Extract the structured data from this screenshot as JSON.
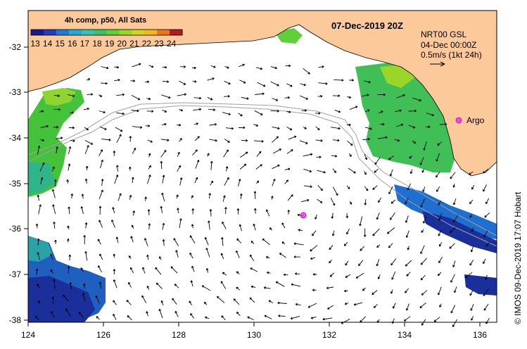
{
  "title": "07-Dec-2019 20Z",
  "colorbar": {
    "title": "4h comp, p50, All Sats",
    "ticks": [
      "13",
      "14",
      "15",
      "16",
      "17",
      "18",
      "19",
      "20",
      "21",
      "22",
      "23",
      "24"
    ],
    "colors": [
      "#1a1a8c",
      "#1f3fbf",
      "#1f78d4",
      "#25a8d8",
      "#35c4b4",
      "#3fbf6a",
      "#5fd03a",
      "#9ad62a",
      "#d0d61f",
      "#f0b81f",
      "#e8741f",
      "#b4191f"
    ]
  },
  "info": {
    "product": "NRT00 GSL",
    "date": "04-Dec 00:00Z",
    "scale": "0.5m/s (1kt 24h)"
  },
  "argo_label": "Argo",
  "credit": "© IMOS 09-Dec-2019 17:07 Hobart",
  "lat_ticks": [
    "-32",
    "-33",
    "-34",
    "-35",
    "-36",
    "-37",
    "-38"
  ],
  "lon_ticks": [
    "124",
    "126",
    "128",
    "130",
    "132",
    "134",
    "136"
  ],
  "colors": {
    "land": "#fcc99a",
    "ocean": "#ffffff",
    "argo": "#e020e0",
    "vector": "#000000",
    "isobath": "#a0a0a0"
  }
}
